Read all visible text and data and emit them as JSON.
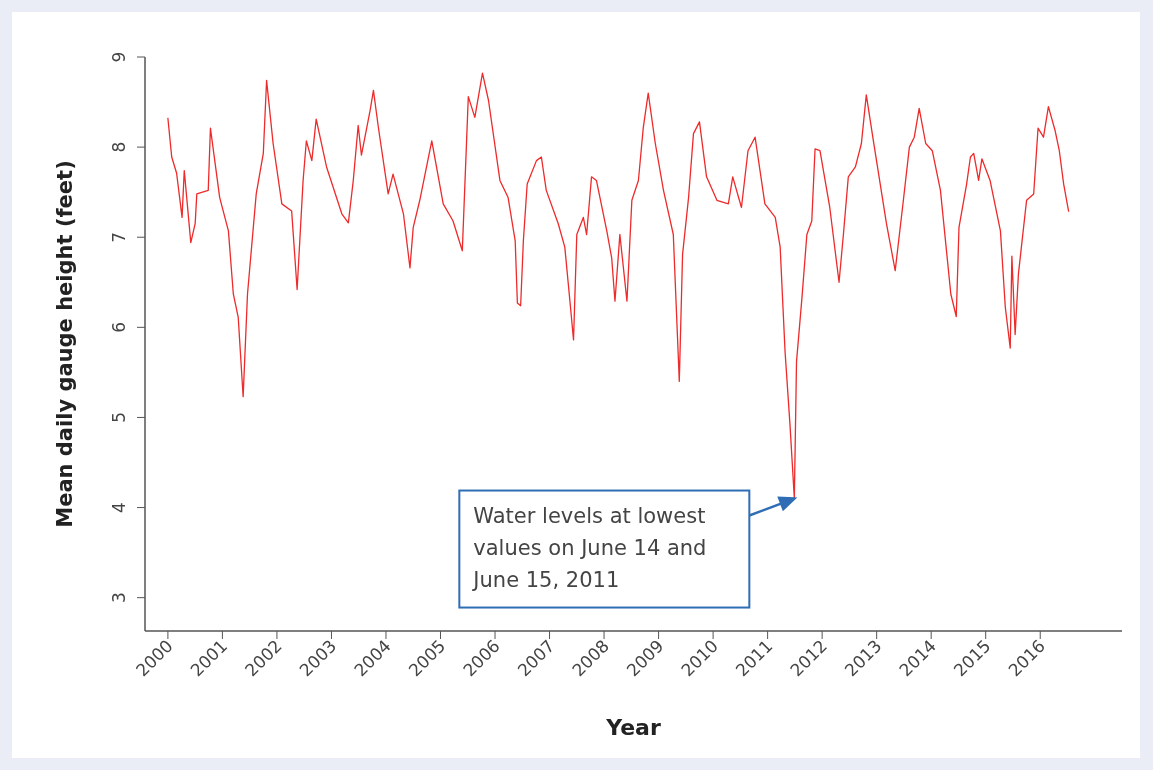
{
  "chart_data": {
    "type": "line",
    "xlabel": "Year",
    "ylabel": "Mean daily gauge height (feet)",
    "xlim": [
      1999.58,
      2017.5
    ],
    "ylim": [
      2.63,
      9
    ],
    "xticks": [
      2000,
      2001,
      2002,
      2003,
      2004,
      2005,
      2006,
      2007,
      2008,
      2009,
      2010,
      2011,
      2012,
      2013,
      2014,
      2015,
      2016
    ],
    "yticks": [
      3,
      4,
      5,
      6,
      7,
      8,
      9
    ],
    "grid": false,
    "marker": "none",
    "line_style": "solid",
    "annotations": [
      "Water levels at lowest values on June 14 and June 15, 2011"
    ],
    "series": [
      {
        "color": "#ee2a2a",
        "x": [
          2000.0,
          2000.07,
          2000.16,
          2000.26,
          2000.3,
          2000.42,
          2000.5,
          2000.53,
          2000.74,
          2000.78,
          2000.95,
          2001.11,
          2001.2,
          2001.29,
          2001.38,
          2001.46,
          2001.62,
          2001.75,
          2001.81,
          2001.93,
          2002.09,
          2002.27,
          2002.37,
          2002.48,
          2002.54,
          2002.64,
          2002.72,
          2002.91,
          2003.19,
          2003.31,
          2003.4,
          2003.49,
          2003.55,
          2003.71,
          2003.77,
          2003.86,
          2004.04,
          2004.13,
          2004.32,
          2004.44,
          2004.5,
          2004.62,
          2004.84,
          2005.05,
          2005.23,
          2005.4,
          2005.51,
          2005.63,
          2005.77,
          2005.88,
          2006.09,
          2006.24,
          2006.37,
          2006.41,
          2006.47,
          2006.52,
          2006.59,
          2006.76,
          2006.85,
          2006.94,
          2007.16,
          2007.28,
          2007.38,
          2007.44,
          2007.5,
          2007.62,
          2007.68,
          2007.77,
          2007.86,
          2008.05,
          2008.14,
          2008.2,
          2008.29,
          2008.42,
          2008.51,
          2008.63,
          2008.72,
          2008.81,
          2008.94,
          2009.09,
          2009.27,
          2009.38,
          2009.44,
          2009.55,
          2009.64,
          2009.75,
          2009.88,
          2010.07,
          2010.28,
          2010.36,
          2010.52,
          2010.64,
          2010.77,
          2010.95,
          2011.14,
          2011.23,
          2011.32,
          2011.41,
          2011.49,
          2011.53,
          2011.63,
          2011.72,
          2011.81,
          2011.87,
          2011.96,
          2012.14,
          2012.31,
          2012.39,
          2012.48,
          2012.61,
          2012.72,
          2012.81,
          2012.94,
          2013.18,
          2013.34,
          2013.49,
          2013.6,
          2013.69,
          2013.78,
          2013.9,
          2014.02,
          2014.17,
          2014.36,
          2014.46,
          2014.51,
          2014.65,
          2014.72,
          2014.78,
          2014.87,
          2014.93,
          2015.08,
          2015.27,
          2015.36,
          2015.45,
          2015.48,
          2015.54,
          2015.6,
          2015.66,
          2015.75,
          2015.88,
          2015.96,
          2016.06,
          2016.15,
          2016.27,
          2016.35,
          2016.43,
          2016.52
        ],
        "values": [
          8.32,
          7.89,
          7.71,
          7.22,
          7.74,
          6.94,
          7.15,
          7.48,
          7.52,
          8.21,
          7.44,
          7.07,
          6.37,
          6.11,
          5.23,
          6.37,
          7.48,
          7.93,
          8.74,
          8.04,
          7.37,
          7.29,
          6.42,
          7.63,
          8.07,
          7.85,
          8.31,
          7.78,
          7.26,
          7.16,
          7.63,
          8.24,
          7.91,
          8.41,
          8.63,
          8.22,
          7.48,
          7.7,
          7.26,
          6.66,
          7.11,
          7.41,
          8.07,
          7.37,
          7.18,
          6.85,
          8.56,
          8.33,
          8.82,
          8.52,
          7.63,
          7.44,
          6.96,
          6.27,
          6.24,
          6.96,
          7.59,
          7.85,
          7.89,
          7.52,
          7.15,
          6.89,
          6.25,
          5.86,
          7.03,
          7.22,
          7.03,
          7.67,
          7.63,
          7.07,
          6.77,
          6.29,
          7.03,
          6.29,
          7.41,
          7.63,
          8.22,
          8.6,
          8.04,
          7.52,
          7.03,
          5.4,
          6.81,
          7.44,
          8.15,
          8.28,
          7.67,
          7.41,
          7.37,
          7.67,
          7.33,
          7.96,
          8.11,
          7.37,
          7.22,
          6.89,
          5.73,
          4.92,
          4.1,
          5.62,
          6.33,
          7.03,
          7.18,
          7.98,
          7.96,
          7.33,
          6.5,
          7.03,
          7.67,
          7.78,
          8.04,
          8.58,
          8.07,
          7.15,
          6.63,
          7.41,
          8.0,
          8.11,
          8.43,
          8.04,
          7.96,
          7.52,
          6.37,
          6.12,
          7.11,
          7.59,
          7.89,
          7.93,
          7.63,
          7.87,
          7.63,
          7.07,
          6.22,
          5.77,
          6.79,
          5.92,
          6.59,
          6.92,
          7.41,
          7.48,
          8.21,
          8.11,
          8.45,
          8.19,
          7.96,
          7.59,
          7.29
        ]
      }
    ]
  }
}
